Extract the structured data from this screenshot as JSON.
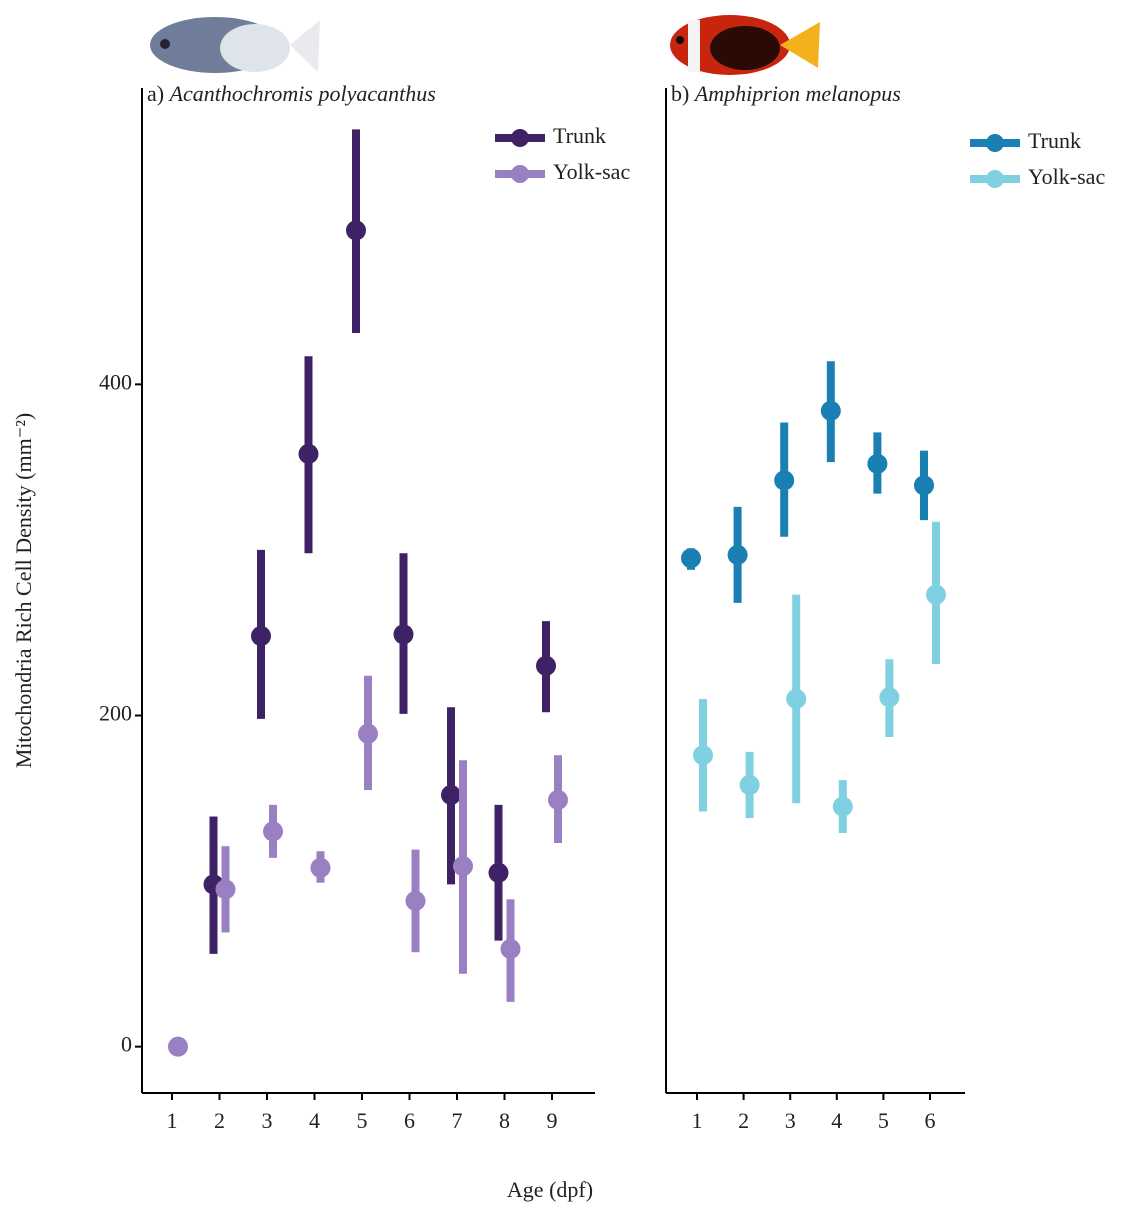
{
  "chart_data": [
    {
      "type": "pointrange",
      "panel": "a)",
      "title": "Acanthochromis polyacanthus",
      "y_label": "Mitochondria Rich Cell Density (mm⁻²)",
      "x_label": "Age (dpf)",
      "categories": [
        "1",
        "2",
        "3",
        "4",
        "5",
        "6",
        "7",
        "8",
        "9"
      ],
      "ylim": [
        -28,
        579
      ],
      "yticks": [
        0,
        200,
        400
      ],
      "series": [
        {
          "name": "Trunk",
          "color": "#3f2266",
          "values": [
            null,
            98,
            248,
            358,
            493,
            249,
            152,
            105,
            230
          ],
          "lower": [
            null,
            56,
            198,
            298,
            431,
            201,
            98,
            64,
            202
          ],
          "upper": [
            null,
            139,
            300,
            417,
            554,
            298,
            205,
            146,
            257
          ]
        },
        {
          "name": "Yolk-sac",
          "color": "#9a80c3",
          "values": [
            0,
            95,
            130,
            108,
            189,
            88,
            109,
            59,
            149
          ],
          "lower": [
            null,
            69,
            114,
            99,
            155,
            57,
            44,
            27,
            123
          ],
          "upper": [
            null,
            121,
            146,
            118,
            224,
            119,
            173,
            89,
            176
          ]
        }
      ]
    },
    {
      "type": "pointrange",
      "panel": "b)",
      "title": "Amphiprion melanopus",
      "categories": [
        "1",
        "2",
        "3",
        "4",
        "5",
        "6"
      ],
      "ylim": [
        -28,
        579
      ],
      "series": [
        {
          "name": "Trunk",
          "color": "#1a80b4",
          "values": [
            295,
            297,
            342,
            384,
            352,
            339
          ],
          "lower": [
            288,
            268,
            308,
            353,
            334,
            318
          ],
          "upper": [
            301,
            326,
            377,
            414,
            371,
            360
          ]
        },
        {
          "name": "Yolk-sac",
          "color": "#7fd1e1",
          "values": [
            176,
            158,
            210,
            145,
            211,
            273
          ],
          "lower": [
            142,
            138,
            147,
            129,
            187,
            231
          ],
          "upper": [
            210,
            178,
            273,
            161,
            234,
            317
          ]
        }
      ]
    }
  ]
}
